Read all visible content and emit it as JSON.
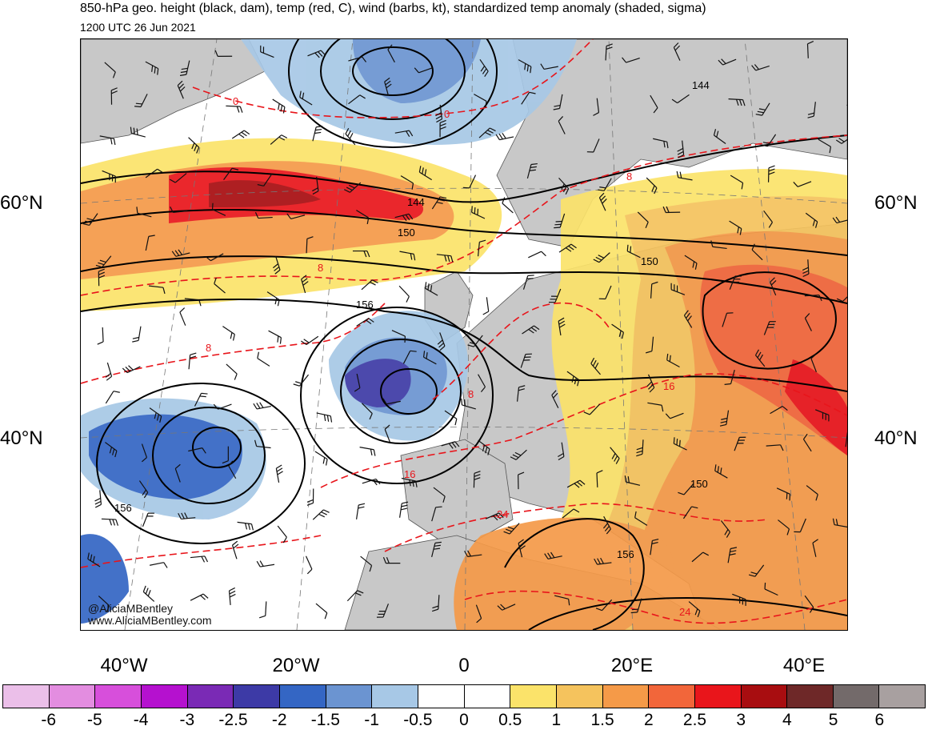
{
  "title": "850-hPa geo. height (black, dam), temp (red, C), wind (barbs, kt), standardized temp anomaly (shaded, sigma)",
  "subtitle": "1200 UTC 26 Jun 2021",
  "lat_labels": [
    "60°N",
    "40°N"
  ],
  "lon_labels": [
    "40°W",
    "20°W",
    "0",
    "20°E",
    "40°E"
  ],
  "contour_labels": {
    "height": [
      "144",
      "150",
      "156",
      "150",
      "156",
      "144",
      "150",
      "156"
    ],
    "temp": [
      "0",
      "0",
      "8",
      "8",
      "8",
      "8",
      "16",
      "16",
      "24",
      "24"
    ]
  },
  "credits": [
    "@AliciaMBentley",
    "www.AliciaMBentley.com"
  ],
  "colorbar": {
    "colors": [
      "#ebbfe9",
      "#e38de0",
      "#d74fdb",
      "#b511cf",
      "#7a2ab5",
      "#3d3aa6",
      "#3466c4",
      "#6b94d1",
      "#a7c8e6",
      "#ffffff",
      "#ffffff",
      "#fbe36a",
      "#f5c35d",
      "#f59a48",
      "#f2663a",
      "#e9151b",
      "#a80d10",
      "#6e2828",
      "#736a6a",
      "#a8a0a0"
    ],
    "ticks": [
      "-6",
      "-5",
      "-4",
      "-3",
      "-2.5",
      "-2",
      "-1.5",
      "-1",
      "-0.5",
      "0",
      "0.5",
      "1",
      "1.5",
      "2",
      "2.5",
      "3",
      "4",
      "5",
      "6"
    ]
  },
  "colors": {
    "land": "#c8c8c8",
    "height_contour": "#000000",
    "temp_contour": "#e8151b"
  }
}
